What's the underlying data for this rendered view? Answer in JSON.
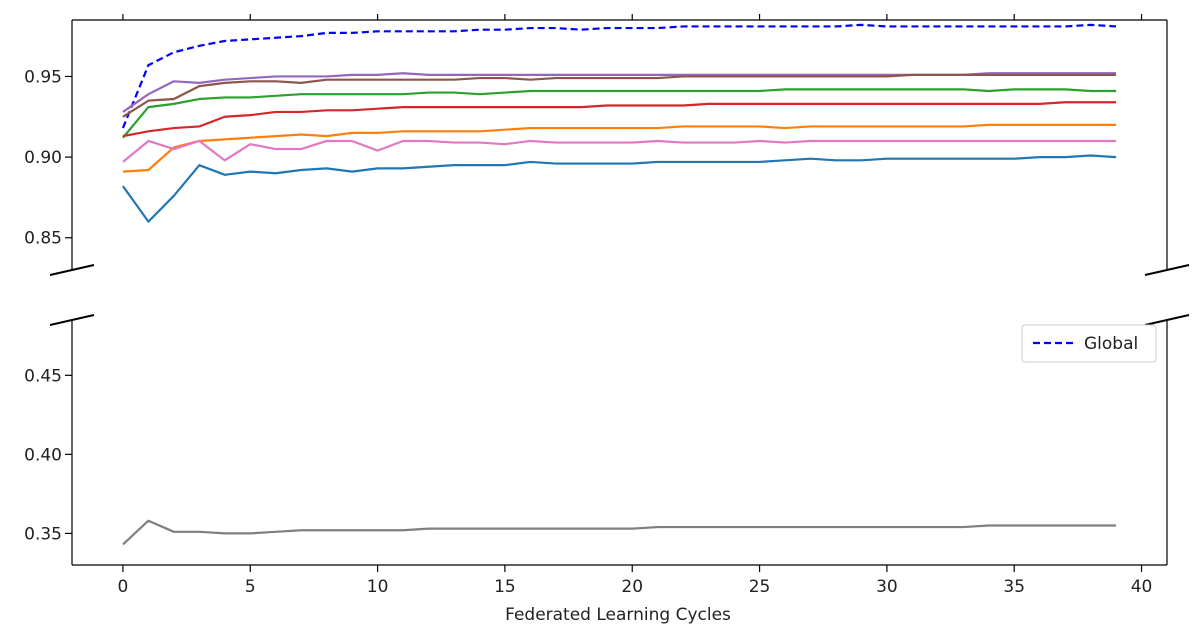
{
  "chart_data": {
    "type": "line",
    "title": "",
    "xlabel": "Federated Learning Cycles",
    "ylabel": "",
    "xlim": [
      -2,
      41
    ],
    "x_ticks": [
      0,
      5,
      10,
      15,
      20,
      25,
      30,
      35,
      40
    ],
    "broken_y_axis": true,
    "upper_panel": {
      "ylim": [
        0.83,
        0.985
      ],
      "ticks": [
        0.85,
        0.9,
        0.95
      ]
    },
    "lower_panel": {
      "ylim": [
        0.33,
        0.485
      ],
      "ticks": [
        0.35,
        0.4,
        0.45
      ]
    },
    "legend": {
      "placement": "right",
      "entries": [
        "Global"
      ]
    },
    "x": [
      0,
      1,
      2,
      3,
      4,
      5,
      6,
      7,
      8,
      9,
      10,
      11,
      12,
      13,
      14,
      15,
      16,
      17,
      18,
      19,
      20,
      21,
      22,
      23,
      24,
      25,
      26,
      27,
      28,
      29,
      30,
      31,
      32,
      33,
      34,
      35,
      36,
      37,
      38,
      39
    ],
    "series": [
      {
        "name": "Global",
        "color": "#0000ff",
        "dashed": true,
        "values": [
          0.918,
          0.957,
          0.965,
          0.969,
          0.972,
          0.973,
          0.974,
          0.975,
          0.977,
          0.977,
          0.978,
          0.978,
          0.978,
          0.978,
          0.979,
          0.979,
          0.98,
          0.98,
          0.979,
          0.98,
          0.98,
          0.98,
          0.981,
          0.981,
          0.981,
          0.981,
          0.981,
          0.981,
          0.981,
          0.982,
          0.981,
          0.981,
          0.981,
          0.981,
          0.981,
          0.981,
          0.981,
          0.981,
          0.982,
          0.981
        ]
      },
      {
        "color": "#9467bd",
        "dashed": false,
        "values": [
          0.928,
          0.939,
          0.947,
          0.946,
          0.948,
          0.949,
          0.95,
          0.95,
          0.95,
          0.951,
          0.951,
          0.952,
          0.951,
          0.951,
          0.951,
          0.951,
          0.951,
          0.951,
          0.951,
          0.951,
          0.951,
          0.951,
          0.951,
          0.951,
          0.951,
          0.951,
          0.951,
          0.951,
          0.951,
          0.951,
          0.951,
          0.951,
          0.951,
          0.951,
          0.952,
          0.952,
          0.952,
          0.952,
          0.952,
          0.952
        ]
      },
      {
        "color": "#8c564b",
        "dashed": false,
        "values": [
          0.925,
          0.935,
          0.936,
          0.944,
          0.946,
          0.947,
          0.947,
          0.946,
          0.948,
          0.948,
          0.948,
          0.948,
          0.948,
          0.948,
          0.949,
          0.949,
          0.948,
          0.949,
          0.949,
          0.949,
          0.949,
          0.949,
          0.95,
          0.95,
          0.95,
          0.95,
          0.95,
          0.95,
          0.95,
          0.95,
          0.95,
          0.951,
          0.951,
          0.951,
          0.951,
          0.951,
          0.951,
          0.951,
          0.951,
          0.951
        ]
      },
      {
        "color": "#2ca02c",
        "dashed": false,
        "values": [
          0.912,
          0.931,
          0.933,
          0.936,
          0.937,
          0.937,
          0.938,
          0.939,
          0.939,
          0.939,
          0.939,
          0.939,
          0.94,
          0.94,
          0.939,
          0.94,
          0.941,
          0.941,
          0.941,
          0.941,
          0.941,
          0.941,
          0.941,
          0.941,
          0.941,
          0.941,
          0.942,
          0.942,
          0.942,
          0.942,
          0.942,
          0.942,
          0.942,
          0.942,
          0.941,
          0.942,
          0.942,
          0.942,
          0.941,
          0.941
        ]
      },
      {
        "color": "#d62728",
        "dashed": false,
        "values": [
          0.913,
          0.916,
          0.918,
          0.919,
          0.925,
          0.926,
          0.928,
          0.928,
          0.929,
          0.929,
          0.93,
          0.931,
          0.931,
          0.931,
          0.931,
          0.931,
          0.931,
          0.931,
          0.931,
          0.932,
          0.932,
          0.932,
          0.932,
          0.933,
          0.933,
          0.933,
          0.933,
          0.933,
          0.933,
          0.933,
          0.933,
          0.933,
          0.933,
          0.933,
          0.933,
          0.933,
          0.933,
          0.934,
          0.934,
          0.934
        ]
      },
      {
        "color": "#ff7f0e",
        "dashed": false,
        "values": [
          0.891,
          0.892,
          0.906,
          0.91,
          0.911,
          0.912,
          0.913,
          0.914,
          0.913,
          0.915,
          0.915,
          0.916,
          0.916,
          0.916,
          0.916,
          0.917,
          0.918,
          0.918,
          0.918,
          0.918,
          0.918,
          0.918,
          0.919,
          0.919,
          0.919,
          0.919,
          0.918,
          0.919,
          0.919,
          0.919,
          0.919,
          0.919,
          0.919,
          0.919,
          0.92,
          0.92,
          0.92,
          0.92,
          0.92,
          0.92
        ]
      },
      {
        "color": "#e377c2",
        "dashed": false,
        "values": [
          0.897,
          0.91,
          0.905,
          0.91,
          0.898,
          0.908,
          0.905,
          0.905,
          0.91,
          0.91,
          0.904,
          0.91,
          0.91,
          0.909,
          0.909,
          0.908,
          0.91,
          0.909,
          0.909,
          0.909,
          0.909,
          0.91,
          0.909,
          0.909,
          0.909,
          0.91,
          0.909,
          0.91,
          0.91,
          0.91,
          0.91,
          0.91,
          0.91,
          0.91,
          0.91,
          0.91,
          0.91,
          0.91,
          0.91,
          0.91
        ]
      },
      {
        "color": "#1f77b4",
        "dashed": false,
        "values": [
          0.882,
          0.86,
          0.876,
          0.895,
          0.889,
          0.891,
          0.89,
          0.892,
          0.893,
          0.891,
          0.893,
          0.893,
          0.894,
          0.895,
          0.895,
          0.895,
          0.897,
          0.896,
          0.896,
          0.896,
          0.896,
          0.897,
          0.897,
          0.897,
          0.897,
          0.897,
          0.898,
          0.899,
          0.898,
          0.898,
          0.899,
          0.899,
          0.899,
          0.899,
          0.899,
          0.899,
          0.9,
          0.9,
          0.901,
          0.9
        ]
      },
      {
        "color": "#7f7f7f",
        "dashed": false,
        "values": [
          0.343,
          0.358,
          0.351,
          0.351,
          0.35,
          0.35,
          0.351,
          0.352,
          0.352,
          0.352,
          0.352,
          0.352,
          0.353,
          0.353,
          0.353,
          0.353,
          0.353,
          0.353,
          0.353,
          0.353,
          0.353,
          0.354,
          0.354,
          0.354,
          0.354,
          0.354,
          0.354,
          0.354,
          0.354,
          0.354,
          0.354,
          0.354,
          0.354,
          0.354,
          0.355,
          0.355,
          0.355,
          0.355,
          0.355,
          0.355
        ]
      }
    ]
  }
}
